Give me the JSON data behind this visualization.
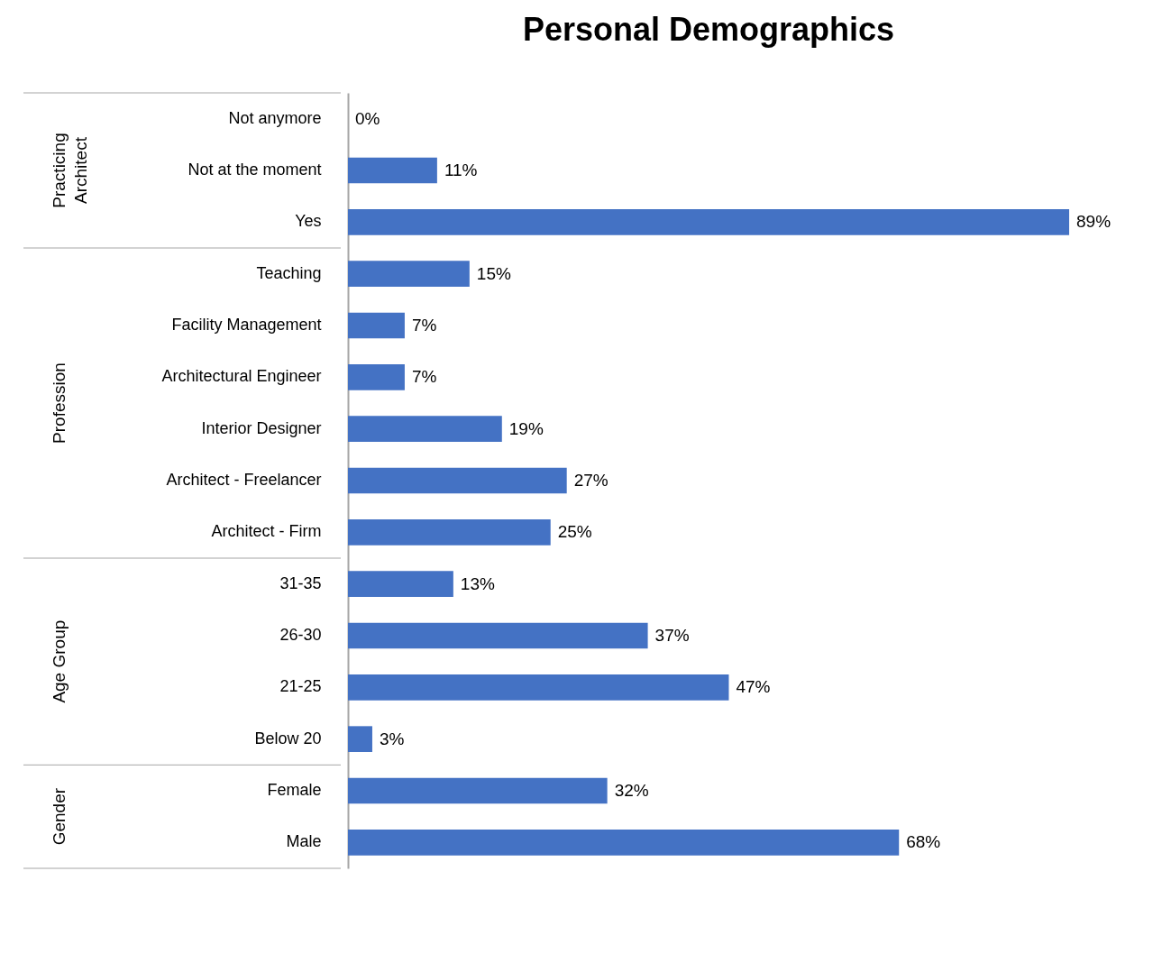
{
  "chart_data": {
    "type": "bar",
    "orientation": "horizontal",
    "title": "Personal Demographics",
    "categories": [
      "Not anymore",
      "Not at the moment",
      "Yes",
      "Teaching",
      "Facility Management",
      "Architectural Engineer",
      "Interior Designer",
      "Architect - Freelancer",
      "Architect - Firm",
      "31-35",
      "26-30",
      "21-25",
      "Below 20",
      "Female",
      "Male"
    ],
    "values": [
      0,
      11,
      89,
      15,
      7,
      7,
      19,
      27,
      25,
      13,
      37,
      47,
      3,
      32,
      68
    ],
    "value_labels": [
      "0%",
      "11%",
      "89%",
      "15%",
      "7%",
      "7%",
      "19%",
      "27%",
      "25%",
      "13%",
      "37%",
      "47%",
      "3%",
      "32%",
      "68%"
    ],
    "color": "#4472c4",
    "grid": false,
    "annotations": [
      "Practicing Architect",
      "Profession",
      "Age Group",
      "Gender"
    ]
  }
}
